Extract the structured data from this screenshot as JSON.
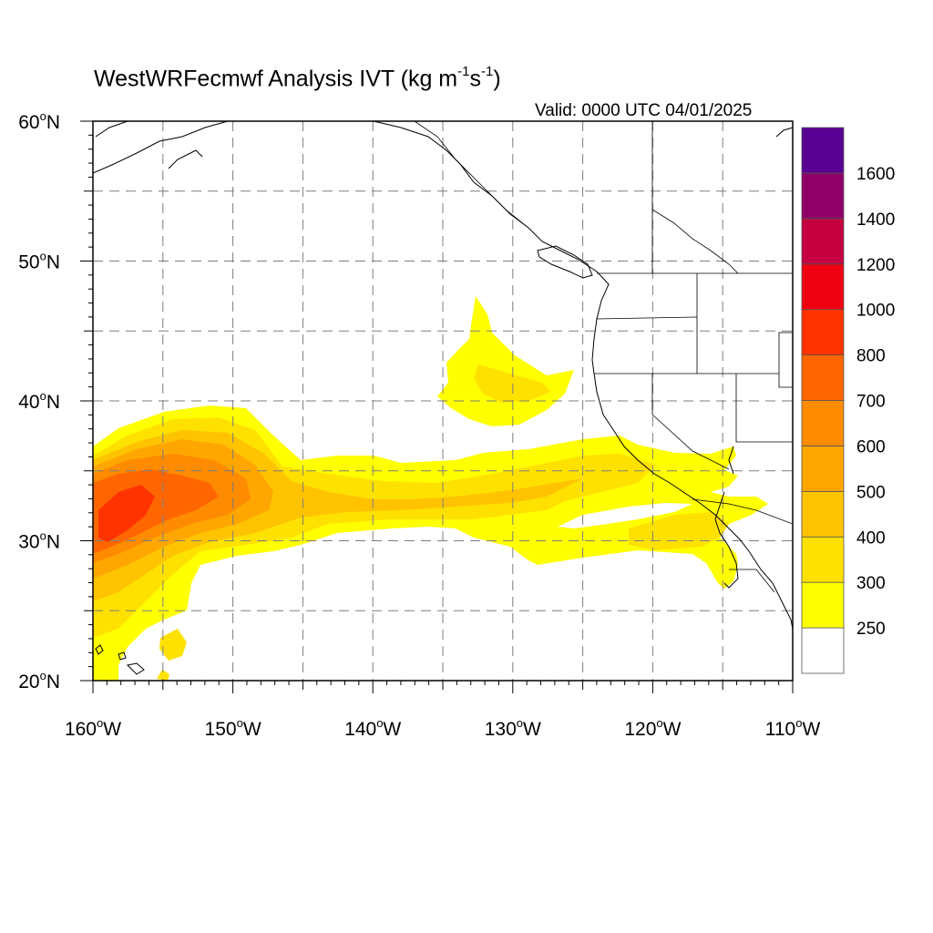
{
  "title": {
    "prefix": "WestWRFecmwf Analysis IVT (kg m",
    "exp1": "-1",
    "mid": "s",
    "exp2": "-1",
    "suffix": ")"
  },
  "valid_label": "Valid: 0000 UTC 04/01/2025",
  "map": {
    "projection": "lat-lon",
    "lon_range": [
      -160,
      -110
    ],
    "lat_range": [
      20,
      60
    ],
    "gridlines": "dashed",
    "lon_ticks": [
      {
        "value": -160,
        "num": "160",
        "hemi": "W"
      },
      {
        "value": -150,
        "num": "150",
        "hemi": "W"
      },
      {
        "value": -140,
        "num": "140",
        "hemi": "W"
      },
      {
        "value": -130,
        "num": "130",
        "hemi": "W"
      },
      {
        "value": -120,
        "num": "120",
        "hemi": "W"
      },
      {
        "value": -110,
        "num": "110",
        "hemi": "W"
      }
    ],
    "lat_ticks": [
      {
        "value": 20,
        "num": "20",
        "hemi": "N"
      },
      {
        "value": 30,
        "num": "30",
        "hemi": "N"
      },
      {
        "value": 40,
        "num": "40",
        "hemi": "N"
      },
      {
        "value": 50,
        "num": "50",
        "hemi": "N"
      },
      {
        "value": 60,
        "num": "60",
        "hemi": "N"
      }
    ],
    "field": "IVT",
    "plumes": [
      {
        "name": "main-atmospheric-river",
        "max_level": "800-1000",
        "core_lat": 31.5,
        "core_lon": -158
      },
      {
        "name": "northern-moisture-lobe",
        "max_level": "250-300",
        "core_lat": 42,
        "core_lon": -130
      }
    ]
  },
  "colorbar": {
    "labels": [
      "250",
      "300",
      "400",
      "500",
      "600",
      "700",
      "800",
      "1000",
      "1200",
      "1400",
      "1600"
    ],
    "colors": [
      "#ffffff",
      "#ffff00",
      "#ffe100",
      "#ffc300",
      "#ffa700",
      "#ff8b00",
      "#ff6600",
      "#ff3300",
      "#ee0011",
      "#c40040",
      "#8e0068",
      "#580092"
    ]
  },
  "colors": {
    "land_line": "#000000",
    "grid": "#7d7d7d"
  }
}
